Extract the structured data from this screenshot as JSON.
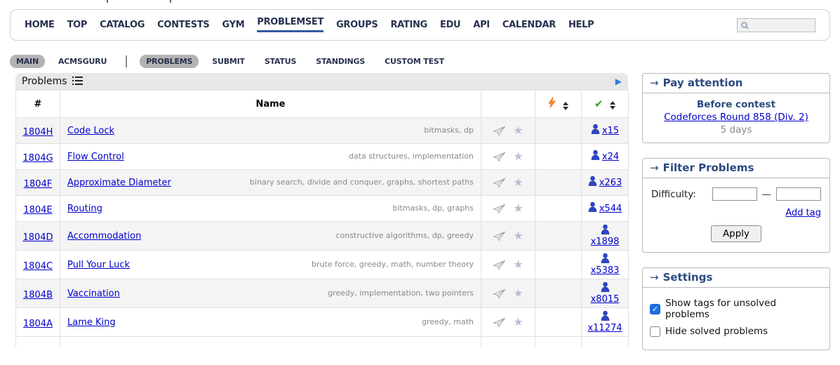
{
  "header_nav": {
    "items": [
      "HOME",
      "TOP",
      "CATALOG",
      "CONTESTS",
      "GYM",
      "PROBLEMSET",
      "GROUPS",
      "RATING",
      "EDU",
      "API",
      "CALENDAR",
      "HELP"
    ],
    "active_item": "PROBLEMSET",
    "search": {
      "value": "",
      "icon": "magnifier-icon"
    }
  },
  "subnav": {
    "items": [
      {
        "label": "MAIN",
        "pill": true
      },
      {
        "label": "ACMSGURU",
        "pill": false
      },
      {
        "separator": true
      },
      {
        "label": "PROBLEMS",
        "pill": true
      },
      {
        "label": "SUBMIT",
        "pill": false
      },
      {
        "label": "STATUS",
        "pill": false
      },
      {
        "label": "STANDINGS",
        "pill": false
      },
      {
        "label": "CUSTOM TEST",
        "pill": false
      }
    ]
  },
  "problems_panel": {
    "title": "Problems",
    "title_icon": "list-icon",
    "expand_icon": "▶",
    "columns": {
      "number": "#",
      "name": "Name",
      "difficulty_icon": "lightning-icon",
      "solved_icon": "green-check-icon"
    },
    "rows": [
      {
        "id": "1804H",
        "name": "Code Lock",
        "tags": "bitmasks, dp",
        "solved": "x15"
      },
      {
        "id": "1804G",
        "name": "Flow Control",
        "tags": "data structures, implementation",
        "solved": "x24"
      },
      {
        "id": "1804F",
        "name": "Approximate Diameter",
        "tags": "binary search, divide and conquer, graphs, shortest paths",
        "solved": "x263"
      },
      {
        "id": "1804E",
        "name": "Routing",
        "tags": "bitmasks, dp, graphs",
        "solved": "x544"
      },
      {
        "id": "1804D",
        "name": "Accommodation",
        "tags": "constructive algorithms, dp, greedy",
        "solved": "x1898"
      },
      {
        "id": "1804C",
        "name": "Pull Your Luck",
        "tags": "brute force, greedy, math, number theory",
        "solved": "x5383"
      },
      {
        "id": "1804B",
        "name": "Vaccination",
        "tags": "greedy, implementation, two pointers",
        "solved": "x8015"
      },
      {
        "id": "1804A",
        "name": "Lame King",
        "tags": "greedy, math",
        "solved": "x11274"
      }
    ]
  },
  "sidebar": {
    "pay_attention": {
      "arrow": "→",
      "title": "Pay attention",
      "subtitle": "Before contest",
      "contest_link": "Codeforces Round 858 (Div. 2)",
      "countdown": "5 days"
    },
    "filter": {
      "arrow": "→",
      "title": "Filter Problems",
      "difficulty_label": "Difficulty:",
      "dash": "—",
      "min_value": "",
      "max_value": "",
      "add_tag_label": "Add tag",
      "apply_label": "Apply"
    },
    "settings": {
      "arrow": "→",
      "title": "Settings",
      "options": [
        {
          "label": "Show tags for unsolved problems",
          "checked": true
        },
        {
          "label": "Hide solved problems",
          "checked": false
        }
      ]
    }
  },
  "colors": {
    "link_blue": "#0000cc",
    "nav_text": "#27324f",
    "active_underline": "#35599e",
    "caption_navy": "#2b4b80",
    "stripe": "#f4f4f4",
    "lightning_orange": "#ff8c1a",
    "check_green": "#2f9e2f",
    "person_blue": "#2d46c8",
    "checkbox_blue": "#1e6fe0"
  }
}
